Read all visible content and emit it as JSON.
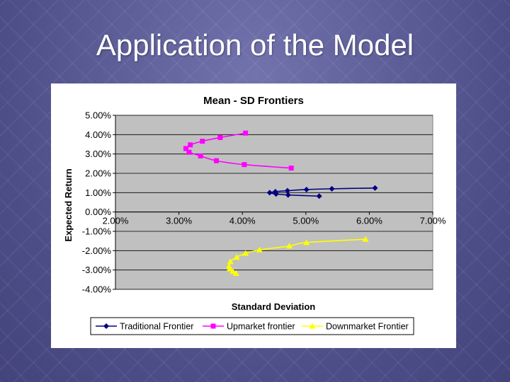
{
  "slide": {
    "title": "Application of the Model"
  },
  "chart_data": {
    "type": "scatter",
    "title": "Mean - SD Frontiers",
    "xlabel": "Standard Deviation",
    "ylabel": "Expected Return",
    "xlim": [
      0.02,
      0.07
    ],
    "ylim": [
      -0.04,
      0.05
    ],
    "x_ticks": [
      "2.00%",
      "3.00%",
      "4.00%",
      "5.00%",
      "6.00%",
      "7.00%"
    ],
    "y_ticks": [
      "5.00%",
      "4.00%",
      "3.00%",
      "2.00%",
      "1.00%",
      "0.00%",
      "-1.00%",
      "-2.00%",
      "-3.00%",
      "-4.00%"
    ],
    "grid": true,
    "plot_background": "#c0c0c0",
    "legend_position": "bottom",
    "series": [
      {
        "name": "Traditional Frontier",
        "color": "#000080",
        "marker": "diamond",
        "x": [
          0.0609,
          0.0541,
          0.0501,
          0.0471,
          0.0452,
          0.0443,
          0.0453,
          0.0472,
          0.0521
        ],
        "y": [
          0.0124,
          0.012,
          0.0116,
          0.011,
          0.0105,
          0.01,
          0.0093,
          0.0088,
          0.0082
        ]
      },
      {
        "name": "Upmarket frontier",
        "color": "#ff00ff",
        "marker": "square",
        "x": [
          0.0405,
          0.0365,
          0.0337,
          0.0318,
          0.0311,
          0.0316,
          0.0334,
          0.0359,
          0.0403,
          0.0477
        ],
        "y": [
          0.0408,
          0.0385,
          0.0366,
          0.0347,
          0.0328,
          0.0309,
          0.029,
          0.0265,
          0.0245,
          0.0227
        ]
      },
      {
        "name": "Downmarket Frontier",
        "color": "#ffff00",
        "marker": "triangle",
        "x": [
          0.0594,
          0.0501,
          0.0474,
          0.0427,
          0.0405,
          0.0391,
          0.0381,
          0.0379,
          0.038,
          0.0385,
          0.039
        ],
        "y": [
          -0.0141,
          -0.0158,
          -0.0176,
          -0.0196,
          -0.0214,
          -0.0234,
          -0.0257,
          -0.028,
          -0.0294,
          -0.0307,
          -0.0317
        ]
      }
    ]
  }
}
